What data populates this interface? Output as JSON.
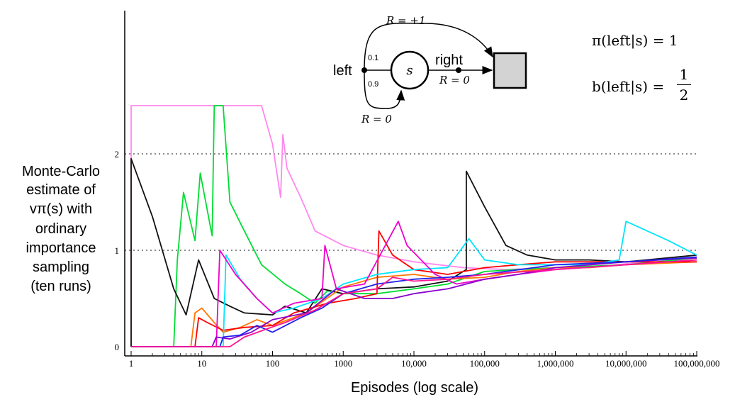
{
  "chart_data": {
    "type": "line",
    "title": "",
    "xlabel": "Episodes (log scale)",
    "ylabel_lines": [
      "Monte-Carlo",
      "estimate of",
      "vπ(s) with",
      "ordinary",
      "importance",
      "sampling",
      "(ten runs)"
    ],
    "xscale": "log",
    "xlim": [
      1,
      100000000
    ],
    "ylim": [
      0,
      2.5
    ],
    "x_ticks": [
      1,
      10,
      100,
      1000,
      10000,
      100000,
      1000000,
      10000000,
      100000000
    ],
    "x_tick_labels": [
      "1",
      "10",
      "100",
      "1000",
      "10,000",
      "100,000",
      "1,000,000",
      "10,000,000",
      "100,000,000"
    ],
    "y_ticks": [
      0,
      1,
      2
    ],
    "y_tick_labels": [
      "0",
      "1",
      "2"
    ],
    "reference_lines": [
      1,
      2
    ],
    "grid": false,
    "series": [
      {
        "color": "#ff88ee",
        "points": [
          [
            1,
            0
          ],
          [
            1,
            2.5
          ],
          [
            70,
            2.5
          ],
          [
            100,
            2.1
          ],
          [
            130,
            1.55
          ],
          [
            140,
            2.2
          ],
          [
            160,
            1.85
          ],
          [
            250,
            1.55
          ],
          [
            400,
            1.2
          ],
          [
            1000,
            1.05
          ],
          [
            3000,
            0.95
          ],
          [
            10000,
            0.88
          ],
          [
            50000,
            0.82
          ],
          [
            200000,
            0.8
          ],
          [
            1000000,
            0.82
          ],
          [
            3000000,
            0.82
          ],
          [
            10000000,
            0.86
          ],
          [
            100000000,
            0.9
          ]
        ]
      },
      {
        "color": "#00dd33",
        "points": [
          [
            1,
            0
          ],
          [
            4,
            0
          ],
          [
            4.5,
            0.9
          ],
          [
            5.5,
            1.6
          ],
          [
            8,
            1.1
          ],
          [
            9.5,
            1.8
          ],
          [
            14,
            1.15
          ],
          [
            15,
            2.5
          ],
          [
            20,
            2.5
          ],
          [
            25,
            1.5
          ],
          [
            40,
            1.2
          ],
          [
            70,
            0.85
          ],
          [
            150,
            0.65
          ],
          [
            250,
            0.55
          ],
          [
            400,
            0.45
          ],
          [
            600,
            0.58
          ],
          [
            1000,
            0.55
          ],
          [
            3000,
            0.55
          ],
          [
            10000,
            0.6
          ],
          [
            30000,
            0.65
          ],
          [
            100000,
            0.78
          ],
          [
            300000,
            0.8
          ],
          [
            1000000,
            0.82
          ],
          [
            10000000,
            0.85
          ],
          [
            100000000,
            0.92
          ]
        ]
      },
      {
        "color": "#111111",
        "points": [
          [
            1,
            0
          ],
          [
            1,
            1.95
          ],
          [
            2,
            1.35
          ],
          [
            4,
            0.6
          ],
          [
            6,
            0.33
          ],
          [
            9,
            0.9
          ],
          [
            15,
            0.5
          ],
          [
            25,
            0.42
          ],
          [
            40,
            0.35
          ],
          [
            100,
            0.33
          ],
          [
            150,
            0.42
          ],
          [
            300,
            0.35
          ],
          [
            500,
            0.6
          ],
          [
            1000,
            0.55
          ],
          [
            3000,
            0.6
          ],
          [
            10000,
            0.62
          ],
          [
            30000,
            0.68
          ],
          [
            55000,
            0.8
          ],
          [
            55000,
            1.82
          ],
          [
            100000,
            1.45
          ],
          [
            200000,
            1.05
          ],
          [
            400000,
            0.95
          ],
          [
            1000000,
            0.9
          ],
          [
            3000000,
            0.9
          ],
          [
            10000000,
            0.88
          ],
          [
            100000000,
            0.95
          ]
        ]
      },
      {
        "color": "#ff7700",
        "points": [
          [
            1,
            0
          ],
          [
            7,
            0
          ],
          [
            8,
            0.35
          ],
          [
            10,
            0.4
          ],
          [
            15,
            0.25
          ],
          [
            20,
            0.15
          ],
          [
            35,
            0.2
          ],
          [
            60,
            0.28
          ],
          [
            100,
            0.22
          ],
          [
            300,
            0.35
          ],
          [
            1000,
            0.62
          ],
          [
            3000,
            0.72
          ],
          [
            10000,
            0.75
          ],
          [
            30000,
            0.7
          ],
          [
            100000,
            0.72
          ],
          [
            300000,
            0.78
          ],
          [
            1000000,
            0.82
          ],
          [
            3000000,
            0.82
          ],
          [
            10000000,
            0.85
          ],
          [
            100000000,
            0.88
          ]
        ]
      },
      {
        "color": "#ff0000",
        "points": [
          [
            1,
            0
          ],
          [
            8,
            0
          ],
          [
            9,
            0.3
          ],
          [
            12,
            0.25
          ],
          [
            20,
            0.17
          ],
          [
            40,
            0.2
          ],
          [
            100,
            0.22
          ],
          [
            200,
            0.35
          ],
          [
            600,
            0.45
          ],
          [
            1500,
            0.5
          ],
          [
            3000,
            0.55
          ],
          [
            3200,
            1.2
          ],
          [
            5000,
            0.95
          ],
          [
            10000,
            0.8
          ],
          [
            30000,
            0.75
          ],
          [
            100000,
            0.82
          ],
          [
            300000,
            0.85
          ],
          [
            1000000,
            0.88
          ],
          [
            100000000,
            0.88
          ]
        ]
      },
      {
        "color": "#00e5ff",
        "points": [
          [
            1,
            0
          ],
          [
            20,
            0
          ],
          [
            22,
            0.95
          ],
          [
            35,
            0.7
          ],
          [
            60,
            0.5
          ],
          [
            100,
            0.35
          ],
          [
            200,
            0.4
          ],
          [
            500,
            0.5
          ],
          [
            1000,
            0.65
          ],
          [
            3000,
            0.75
          ],
          [
            10000,
            0.8
          ],
          [
            30000,
            0.82
          ],
          [
            60000,
            1.12
          ],
          [
            100000,
            0.9
          ],
          [
            300000,
            0.85
          ],
          [
            1000000,
            0.85
          ],
          [
            3000000,
            0.85
          ],
          [
            8000000,
            0.9
          ],
          [
            10000000,
            1.3
          ],
          [
            20000000,
            1.2
          ],
          [
            40000000,
            1.1
          ],
          [
            100000000,
            0.95
          ]
        ]
      },
      {
        "color": "#ee00cc",
        "points": [
          [
            1,
            0
          ],
          [
            16,
            0
          ],
          [
            18,
            1.0
          ],
          [
            30,
            0.75
          ],
          [
            60,
            0.5
          ],
          [
            100,
            0.35
          ],
          [
            200,
            0.45
          ],
          [
            500,
            0.5
          ],
          [
            550,
            1.05
          ],
          [
            800,
            0.6
          ],
          [
            2000,
            0.65
          ],
          [
            6000,
            1.3
          ],
          [
            8000,
            1.05
          ],
          [
            20000,
            0.75
          ],
          [
            40000,
            0.65
          ],
          [
            100000,
            0.7
          ],
          [
            300000,
            0.75
          ],
          [
            1000000,
            0.8
          ],
          [
            10000000,
            0.85
          ],
          [
            100000000,
            0.9
          ]
        ]
      },
      {
        "color": "#8800cc",
        "points": [
          [
            1,
            0
          ],
          [
            14,
            0
          ],
          [
            16,
            0.1
          ],
          [
            25,
            0.08
          ],
          [
            50,
            0.15
          ],
          [
            100,
            0.28
          ],
          [
            300,
            0.35
          ],
          [
            800,
            0.6
          ],
          [
            2000,
            0.5
          ],
          [
            5000,
            0.5
          ],
          [
            10000,
            0.55
          ],
          [
            30000,
            0.6
          ],
          [
            100000,
            0.7
          ],
          [
            300000,
            0.75
          ],
          [
            1000000,
            0.82
          ],
          [
            10000000,
            0.88
          ],
          [
            100000000,
            0.92
          ]
        ]
      },
      {
        "color": "#2222ee",
        "points": [
          [
            1,
            0
          ],
          [
            18,
            0
          ],
          [
            20,
            0.1
          ],
          [
            35,
            0.12
          ],
          [
            60,
            0.22
          ],
          [
            100,
            0.15
          ],
          [
            250,
            0.3
          ],
          [
            500,
            0.4
          ],
          [
            1000,
            0.55
          ],
          [
            3000,
            0.65
          ],
          [
            10000,
            0.7
          ],
          [
            30000,
            0.72
          ],
          [
            100000,
            0.75
          ],
          [
            1000000,
            0.85
          ],
          [
            10000000,
            0.88
          ],
          [
            100000000,
            0.93
          ]
        ]
      },
      {
        "color": "#ff1493",
        "points": [
          [
            1,
            0
          ],
          [
            25,
            0
          ],
          [
            40,
            0.1
          ],
          [
            80,
            0.18
          ],
          [
            150,
            0.25
          ],
          [
            400,
            0.38
          ],
          [
            1000,
            0.55
          ],
          [
            3000,
            0.6
          ],
          [
            5000,
            0.72
          ],
          [
            10000,
            0.68
          ],
          [
            30000,
            0.7
          ],
          [
            100000,
            0.75
          ],
          [
            1000000,
            0.8
          ],
          [
            10000000,
            0.85
          ],
          [
            100000000,
            0.9
          ]
        ]
      }
    ]
  },
  "diagram": {
    "state_label": "s",
    "left_label": "left",
    "right_label": "right",
    "reward_top": "R = +1",
    "reward_bottom": "R = 0",
    "reward_right": "R = 0",
    "prob_top": "0.1",
    "prob_bottom": "0.9"
  },
  "formulas": {
    "pi_lhs": "π(left|s) = 1",
    "b_lhs": "b(left|s) =",
    "b_num": "1",
    "b_den": "2"
  }
}
